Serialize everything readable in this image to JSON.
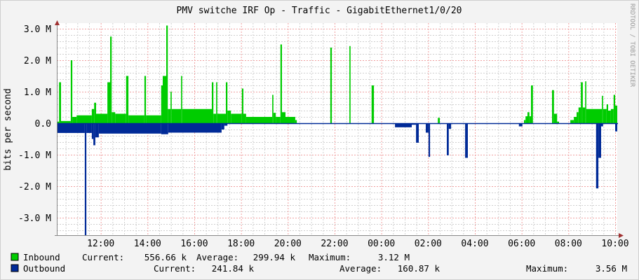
{
  "chart_data": {
    "type": "area",
    "title": "PMV switche IRF Op - Traffic - GigabitEthernet1/0/20",
    "ylabel": "bits per second",
    "xlabel": "",
    "watermark": "RRDTOOL / TOBI OETIKER",
    "y_unit": "M",
    "ylim": [
      -3.56,
      3.2
    ],
    "grid": true,
    "y_ticks": [
      {
        "value": 3,
        "label": "3.0 M"
      },
      {
        "value": 2,
        "label": "2.0 M"
      },
      {
        "value": 1,
        "label": "1.0 M"
      },
      {
        "value": 0,
        "label": "0.0"
      },
      {
        "value": -1,
        "label": "-1.0 M"
      },
      {
        "value": -2,
        "label": "-2.0 M"
      },
      {
        "value": -3,
        "label": "-3.0 M"
      }
    ],
    "x_ticks": [
      "12:00",
      "14:00",
      "16:00",
      "18:00",
      "20:00",
      "22:00",
      "00:00",
      "02:00",
      "04:00",
      "06:00",
      "08:00",
      "10:00"
    ],
    "series": [
      {
        "name": "Inbound",
        "color": "#00cc00",
        "points": [
          [
            "10:07",
            0.05
          ],
          [
            "10:13",
            1.3
          ],
          [
            "10:18",
            0.07
          ],
          [
            "10:43",
            2.0
          ],
          [
            "10:47",
            0.2
          ],
          [
            "10:58",
            0.25
          ],
          [
            "11:37",
            0.45
          ],
          [
            "11:43",
            0.65
          ],
          [
            "11:48",
            0.3
          ],
          [
            "12:17",
            1.3
          ],
          [
            "12:24",
            2.75
          ],
          [
            "12:28",
            0.35
          ],
          [
            "12:37",
            0.3
          ],
          [
            "13:05",
            1.5
          ],
          [
            "13:11",
            0.25
          ],
          [
            "13:52",
            1.5
          ],
          [
            "13:56",
            0.25
          ],
          [
            "14:35",
            1.2
          ],
          [
            "14:39",
            1.5
          ],
          [
            "14:48",
            3.1
          ],
          [
            "14:52",
            0.45
          ],
          [
            "14:59",
            1.0
          ],
          [
            "15:02",
            0.45
          ],
          [
            "15:26",
            1.5
          ],
          [
            "15:29",
            0.45
          ],
          [
            "16:45",
            1.3
          ],
          [
            "16:49",
            0.3
          ],
          [
            "16:56",
            1.3
          ],
          [
            "16:59",
            0.3
          ],
          [
            "17:21",
            1.3
          ],
          [
            "17:25",
            0.4
          ],
          [
            "17:34",
            0.3
          ],
          [
            "18:02",
            1.1
          ],
          [
            "18:06",
            0.3
          ],
          [
            "18:13",
            0.2
          ],
          [
            "19:20",
            0.9
          ],
          [
            "19:23",
            0.33
          ],
          [
            "19:29",
            0.2
          ],
          [
            "19:41",
            2.5
          ],
          [
            "19:45",
            0.35
          ],
          [
            "19:54",
            0.2
          ],
          [
            "20:19",
            0.1
          ],
          [
            "20:23",
            0
          ],
          [
            "21:49",
            2.4
          ],
          [
            "21:53",
            0
          ],
          [
            "22:38",
            2.45
          ],
          [
            "22:41",
            0
          ],
          [
            "23:35",
            1.2
          ],
          [
            "23:41",
            0
          ],
          [
            "02:25",
            0.17
          ],
          [
            "02:30",
            0
          ],
          [
            "06:06",
            0.1
          ],
          [
            "06:10",
            0.22
          ],
          [
            "06:15",
            0.35
          ],
          [
            "06:20",
            0.22
          ],
          [
            "06:24",
            1.2
          ],
          [
            "06:29",
            0
          ],
          [
            "07:18",
            1.05
          ],
          [
            "07:23",
            0.3
          ],
          [
            "07:31",
            0.05
          ],
          [
            "07:36",
            0
          ],
          [
            "08:05",
            0.1
          ],
          [
            "08:14",
            0.2
          ],
          [
            "08:21",
            0.35
          ],
          [
            "08:26",
            0.5
          ],
          [
            "08:32",
            1.3
          ],
          [
            "08:37",
            0.5
          ],
          [
            "08:43",
            1.33
          ],
          [
            "08:46",
            0.45
          ],
          [
            "09:26",
            0.87
          ],
          [
            "09:29",
            0.45
          ],
          [
            "09:38",
            0.6
          ],
          [
            "09:42",
            0.4
          ],
          [
            "09:49",
            0.45
          ],
          [
            "09:56",
            0.9
          ],
          [
            "10:00",
            0.56
          ]
        ],
        "legend": {
          "current_label": "Current:",
          "current": "556.66 k",
          "average_label": "Average:",
          "average": "299.94 k",
          "maximum_label": "Maximum:",
          "maximum": "3.12 M"
        }
      },
      {
        "name": "Outbound",
        "color": "#002a97",
        "points": [
          [
            "10:07",
            -0.31
          ],
          [
            "11:19",
            -3.56
          ],
          [
            "11:23",
            -0.31
          ],
          [
            "11:37",
            -0.5
          ],
          [
            "11:41",
            -0.7
          ],
          [
            "11:46",
            -0.45
          ],
          [
            "11:55",
            -0.33
          ],
          [
            "14:35",
            -0.35
          ],
          [
            "14:53",
            -0.3
          ],
          [
            "17:10",
            -0.2
          ],
          [
            "17:17",
            -0.08
          ],
          [
            "17:25",
            0
          ],
          [
            "00:35",
            -0.13
          ],
          [
            "01:18",
            -0.05
          ],
          [
            "01:29",
            -0.62
          ],
          [
            "01:36",
            -0.02
          ],
          [
            "01:54",
            -0.3
          ],
          [
            "02:01",
            -1.07
          ],
          [
            "02:05",
            0
          ],
          [
            "02:48",
            -1.02
          ],
          [
            "02:53",
            -0.18
          ],
          [
            "02:59",
            0
          ],
          [
            "03:35",
            -1.1
          ],
          [
            "03:42",
            0
          ],
          [
            "05:53",
            -0.1
          ],
          [
            "06:02",
            0
          ],
          [
            "09:11",
            -2.07
          ],
          [
            "09:17",
            -1.1
          ],
          [
            "09:24",
            -0.1
          ],
          [
            "09:29",
            0
          ],
          [
            "10:00",
            -0.26
          ]
        ],
        "legend": {
          "current_label": "Current:",
          "current": "241.84 k",
          "average_label": "Average:",
          "average": "160.87 k",
          "maximum_label": "Maximum:",
          "maximum": "3.56 M"
        }
      }
    ]
  }
}
